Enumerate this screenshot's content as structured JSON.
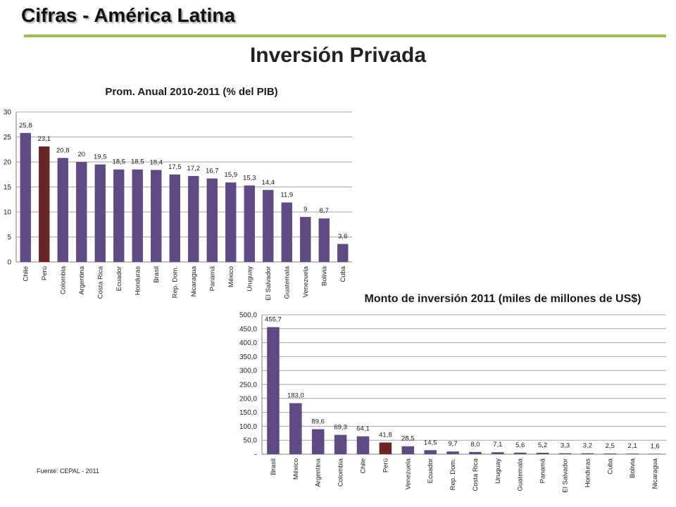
{
  "header": {
    "title": "Cifras - América Latina"
  },
  "main": {
    "title": "Inversión Privada"
  },
  "source": "Fuente: CEPAL - 2011",
  "colors": {
    "bar": "#5f4a85",
    "highlight": "#6b2424",
    "rule": "#92c353",
    "grid": "#a6a6a6"
  },
  "chart_data": [
    {
      "type": "bar",
      "title": "Prom. Anual 2010-2011  (% del PIB)",
      "xlabel": "",
      "ylabel": "",
      "ylim": [
        0,
        30
      ],
      "yticks": [
        "0",
        "5",
        "10",
        "15",
        "20",
        "25",
        "30"
      ],
      "categories": [
        "Chile",
        "Perú",
        "Colombia",
        "Argentina",
        "Costa Rica",
        "Ecuador",
        "Honduras",
        "Brasil",
        "Rep. Dom.",
        "Nicaragua",
        "Panamá",
        "México",
        "Uruguay",
        "El Salvador",
        "Guatemala",
        "Venezuela",
        "Bolivia",
        "Cuba"
      ],
      "values": [
        25.8,
        23.1,
        20.8,
        20,
        19.5,
        18.5,
        18.5,
        18.4,
        17.5,
        17.2,
        16.7,
        15.9,
        15.3,
        14.4,
        11.9,
        9,
        8.7,
        3.6
      ],
      "labels": [
        "25,8",
        "23,1",
        "20,8",
        "20",
        "19,5",
        "18,5",
        "18,5",
        "18,4",
        "17,5",
        "17,2",
        "16,7",
        "15,9",
        "15,3",
        "14,4",
        "11,9",
        "9",
        "8,7",
        "3,6"
      ],
      "highlight": "Perú",
      "grid": true,
      "legend": "none"
    },
    {
      "type": "bar",
      "title": "Monto de inversión  2011 (miles de millones de US$)",
      "xlabel": "",
      "ylabel": "",
      "ylim": [
        0,
        500
      ],
      "yticks": [
        "-",
        "50,0",
        "100,0",
        "150,0",
        "200,0",
        "250,0",
        "300,0",
        "350,0",
        "400,0",
        "450,0",
        "500,0"
      ],
      "categories": [
        "Brasil",
        "México",
        "Argentina",
        "Colombia",
        "Chile",
        "Perú",
        "Venezuela",
        "Ecuador",
        "Rep. Dom.",
        "Costa Rica",
        "Uruguay",
        "Guatemala",
        "Panamá",
        "El Salvador",
        "Honduras",
        "Cuba",
        "Bolivia",
        "Nicaragua"
      ],
      "values": [
        455.7,
        183.0,
        89.6,
        69.3,
        64.1,
        41.8,
        28.5,
        14.5,
        9.7,
        8.0,
        7.1,
        5.6,
        5.2,
        3.3,
        3.2,
        2.5,
        2.1,
        1.6
      ],
      "labels": [
        "455,7",
        "183,0",
        "89,6",
        "69,3",
        "64,1",
        "41,8",
        "28,5",
        "14,5",
        "9,7",
        "8,0",
        "7,1",
        "5,6",
        "5,2",
        "3,3",
        "3,2",
        "2,5",
        "2,1",
        "1,6"
      ],
      "highlight": "Perú",
      "grid": true,
      "legend": "none"
    }
  ]
}
